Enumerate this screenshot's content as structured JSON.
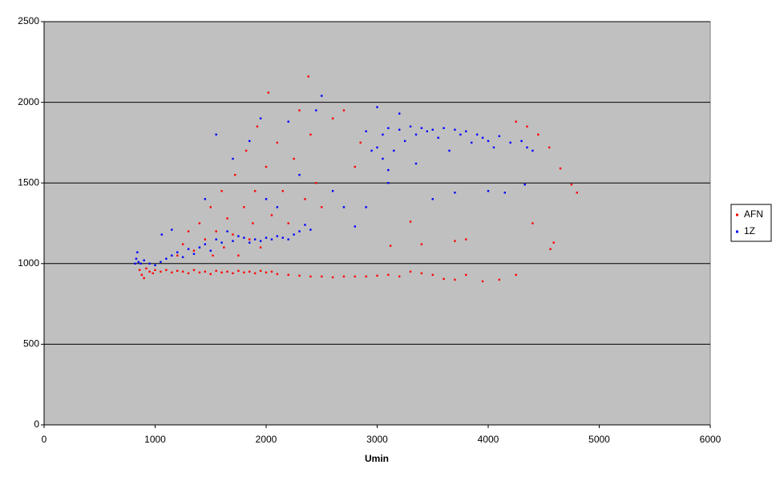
{
  "chart_data": {
    "type": "scatter",
    "x_label": "Umin",
    "xlim": [
      0,
      6000
    ],
    "xticks": [
      0,
      1000,
      2000,
      3000,
      4000,
      5000,
      6000
    ],
    "ylim": [
      0,
      2500
    ],
    "yticks": [
      0,
      500,
      1000,
      1500,
      2000,
      2500
    ],
    "grid": true,
    "legend": "right",
    "series": [
      {
        "name": "AFN",
        "color": "#ff0000",
        "x": [
          860,
          880,
          900,
          920,
          950,
          980,
          1000,
          1050,
          1100,
          1150,
          1200,
          1250,
          1300,
          1350,
          1400,
          1450,
          1500,
          1550,
          1600,
          1650,
          1700,
          1750,
          1800,
          1850,
          1900,
          1950,
          2000,
          2050,
          2100,
          2200,
          2300,
          2400,
          2500,
          2600,
          2700,
          2800,
          2900,
          3000,
          3100,
          3200,
          3300,
          3400,
          3500,
          3600,
          3700,
          3800,
          3950,
          4100,
          4250,
          1200,
          1250,
          1300,
          1350,
          1400,
          1450,
          1500,
          1520,
          1550,
          1600,
          1620,
          1650,
          1700,
          1720,
          1750,
          1800,
          1820,
          1850,
          1880,
          1900,
          1920,
          1950,
          2000,
          2020,
          2050,
          2100,
          2150,
          2200,
          2250,
          2300,
          2350,
          2380,
          2400,
          2450,
          2500,
          2600,
          2700,
          2800,
          2850,
          3120,
          3300,
          3400,
          3700,
          3800,
          4250,
          4350,
          4400,
          4450,
          4550,
          4560,
          4590,
          4650,
          4750,
          4800
        ],
        "values": [
          960,
          930,
          910,
          970,
          950,
          940,
          960,
          950,
          960,
          945,
          955,
          950,
          940,
          960,
          945,
          950,
          935,
          955,
          945,
          950,
          940,
          955,
          945,
          950,
          940,
          955,
          945,
          950,
          935,
          930,
          925,
          920,
          920,
          915,
          920,
          920,
          920,
          925,
          930,
          920,
          950,
          940,
          930,
          905,
          900,
          930,
          890,
          900,
          930,
          1050,
          1120,
          1200,
          1080,
          1250,
          1150,
          1350,
          1050,
          1200,
          1450,
          1100,
          1280,
          1180,
          1550,
          1050,
          1350,
          1700,
          1150,
          1250,
          1450,
          1850,
          1100,
          1600,
          2060,
          1300,
          1750,
          1450,
          1250,
          1650,
          1950,
          1400,
          2160,
          1800,
          1500,
          1350,
          1900,
          1950,
          1600,
          1750,
          1110,
          1260,
          1120,
          1140,
          1150,
          1880,
          1850,
          1250,
          1800,
          1720,
          1090,
          1130,
          1590,
          1490,
          1440
        ]
      },
      {
        "name": "1Z",
        "color": "#0000ff",
        "x": [
          820,
          830,
          840,
          850,
          870,
          900,
          950,
          1000,
          1050,
          1100,
          1150,
          1200,
          1250,
          1300,
          1350,
          1400,
          1450,
          1500,
          1550,
          1600,
          1650,
          1700,
          1750,
          1800,
          1850,
          1900,
          1950,
          2000,
          2050,
          2100,
          2150,
          2200,
          2250,
          2300,
          2350,
          2400,
          1060,
          1150,
          1450,
          1550,
          1700,
          1850,
          1950,
          2000,
          2100,
          2200,
          2300,
          2450,
          2500,
          2600,
          2700,
          2800,
          2900,
          2950,
          3000,
          3050,
          3050,
          3100,
          3100,
          3150,
          3200,
          3250,
          3300,
          3350,
          3350,
          3400,
          3450,
          3500,
          3550,
          3600,
          3650,
          3700,
          3750,
          3800,
          3850,
          3900,
          3950,
          4000,
          4050,
          4100,
          4200,
          4300,
          4350,
          4400,
          3000,
          3200,
          3500,
          3700,
          4000,
          4150,
          4330,
          3100,
          2900
        ],
        "values": [
          1000,
          1030,
          1070,
          1010,
          1000,
          1020,
          1000,
          990,
          1010,
          1030,
          1050,
          1070,
          1040,
          1090,
          1060,
          1100,
          1120,
          1080,
          1150,
          1130,
          1200,
          1140,
          1170,
          1160,
          1130,
          1150,
          1140,
          1160,
          1150,
          1170,
          1160,
          1150,
          1180,
          1200,
          1240,
          1210,
          1180,
          1210,
          1400,
          1800,
          1650,
          1760,
          1900,
          1400,
          1350,
          1880,
          1550,
          1950,
          2040,
          1450,
          1350,
          1230,
          1350,
          1700,
          1720,
          1650,
          1800,
          1840,
          1580,
          1700,
          1830,
          1760,
          1850,
          1620,
          1800,
          1840,
          1820,
          1830,
          1780,
          1840,
          1700,
          1830,
          1800,
          1820,
          1750,
          1800,
          1780,
          1760,
          1720,
          1790,
          1750,
          1760,
          1720,
          1700,
          1970,
          1930,
          1400,
          1440,
          1450,
          1440,
          1490,
          1500,
          1820
        ]
      }
    ]
  }
}
